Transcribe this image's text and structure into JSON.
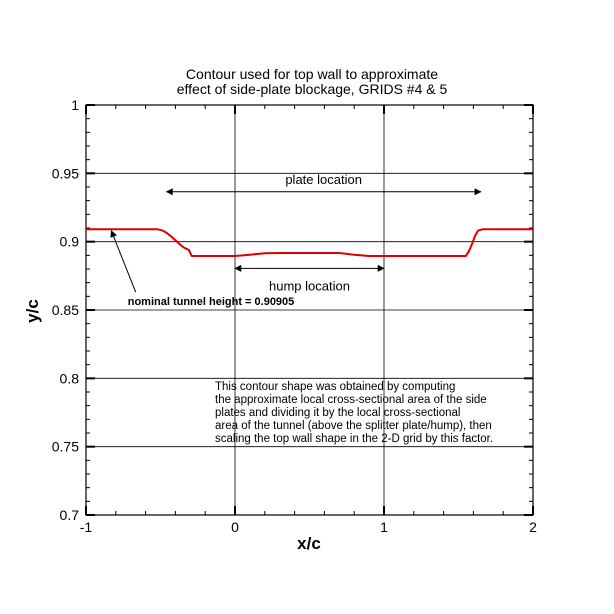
{
  "chart_data": {
    "type": "line",
    "title": "Contour used for top wall to approximate",
    "subtitle": "effect of side-plate blockage, GRIDS #4 & 5",
    "xlabel": "x/c",
    "ylabel": "y/c",
    "xlim": [
      -1,
      2
    ],
    "ylim": [
      0.7,
      1.0
    ],
    "xticks": [
      "-1",
      "0",
      "1",
      "2"
    ],
    "yticks": [
      "0.7",
      "0.75",
      "0.8",
      "0.85",
      "0.9",
      "0.95",
      "1"
    ],
    "grid": true,
    "line_color": "#dd0000",
    "series": [
      {
        "x": [
          -1.0,
          -0.52,
          -0.49,
          -0.46,
          -0.43,
          -0.4,
          -0.37,
          -0.34,
          -0.31,
          -0.29,
          0.0,
          0.1,
          0.2,
          0.3,
          0.5,
          0.7,
          0.8,
          0.9,
          1.0,
          1.3,
          1.55,
          1.57,
          1.59,
          1.61,
          1.63,
          1.66,
          2.0
        ],
        "y": [
          0.90905,
          0.90905,
          0.9083,
          0.9065,
          0.904,
          0.901,
          0.898,
          0.8955,
          0.894,
          0.8895,
          0.8895,
          0.8905,
          0.8915,
          0.8917,
          0.8917,
          0.8917,
          0.8905,
          0.8895,
          0.8895,
          0.8895,
          0.8895,
          0.893,
          0.898,
          0.904,
          0.908,
          0.90905,
          0.90905
        ]
      }
    ],
    "annotations": {
      "plate_location": {
        "text": "plate location",
        "x_start": -0.46,
        "x_end": 1.65,
        "y": 0.9365
      },
      "hump_location": {
        "text": "hump location",
        "x_start": 0.0,
        "x_end": 1.0,
        "y": 0.8805
      },
      "nominal_height": {
        "text": "nominal tunnel height = 0.90905",
        "text_x": -0.72,
        "text_y": 0.8535,
        "arrow_tip_x": -0.83,
        "arrow_tip_y": 0.908
      },
      "note": [
        "This contour shape was obtained  by computing",
        "the approximate local cross-sectional area of the side",
        "plates and dividing it by the local cross-sectional",
        "area of the tunnel (above the splitter plate/hump), then",
        "scaling the top wall shape in the 2-D grid by this factor."
      ]
    }
  }
}
